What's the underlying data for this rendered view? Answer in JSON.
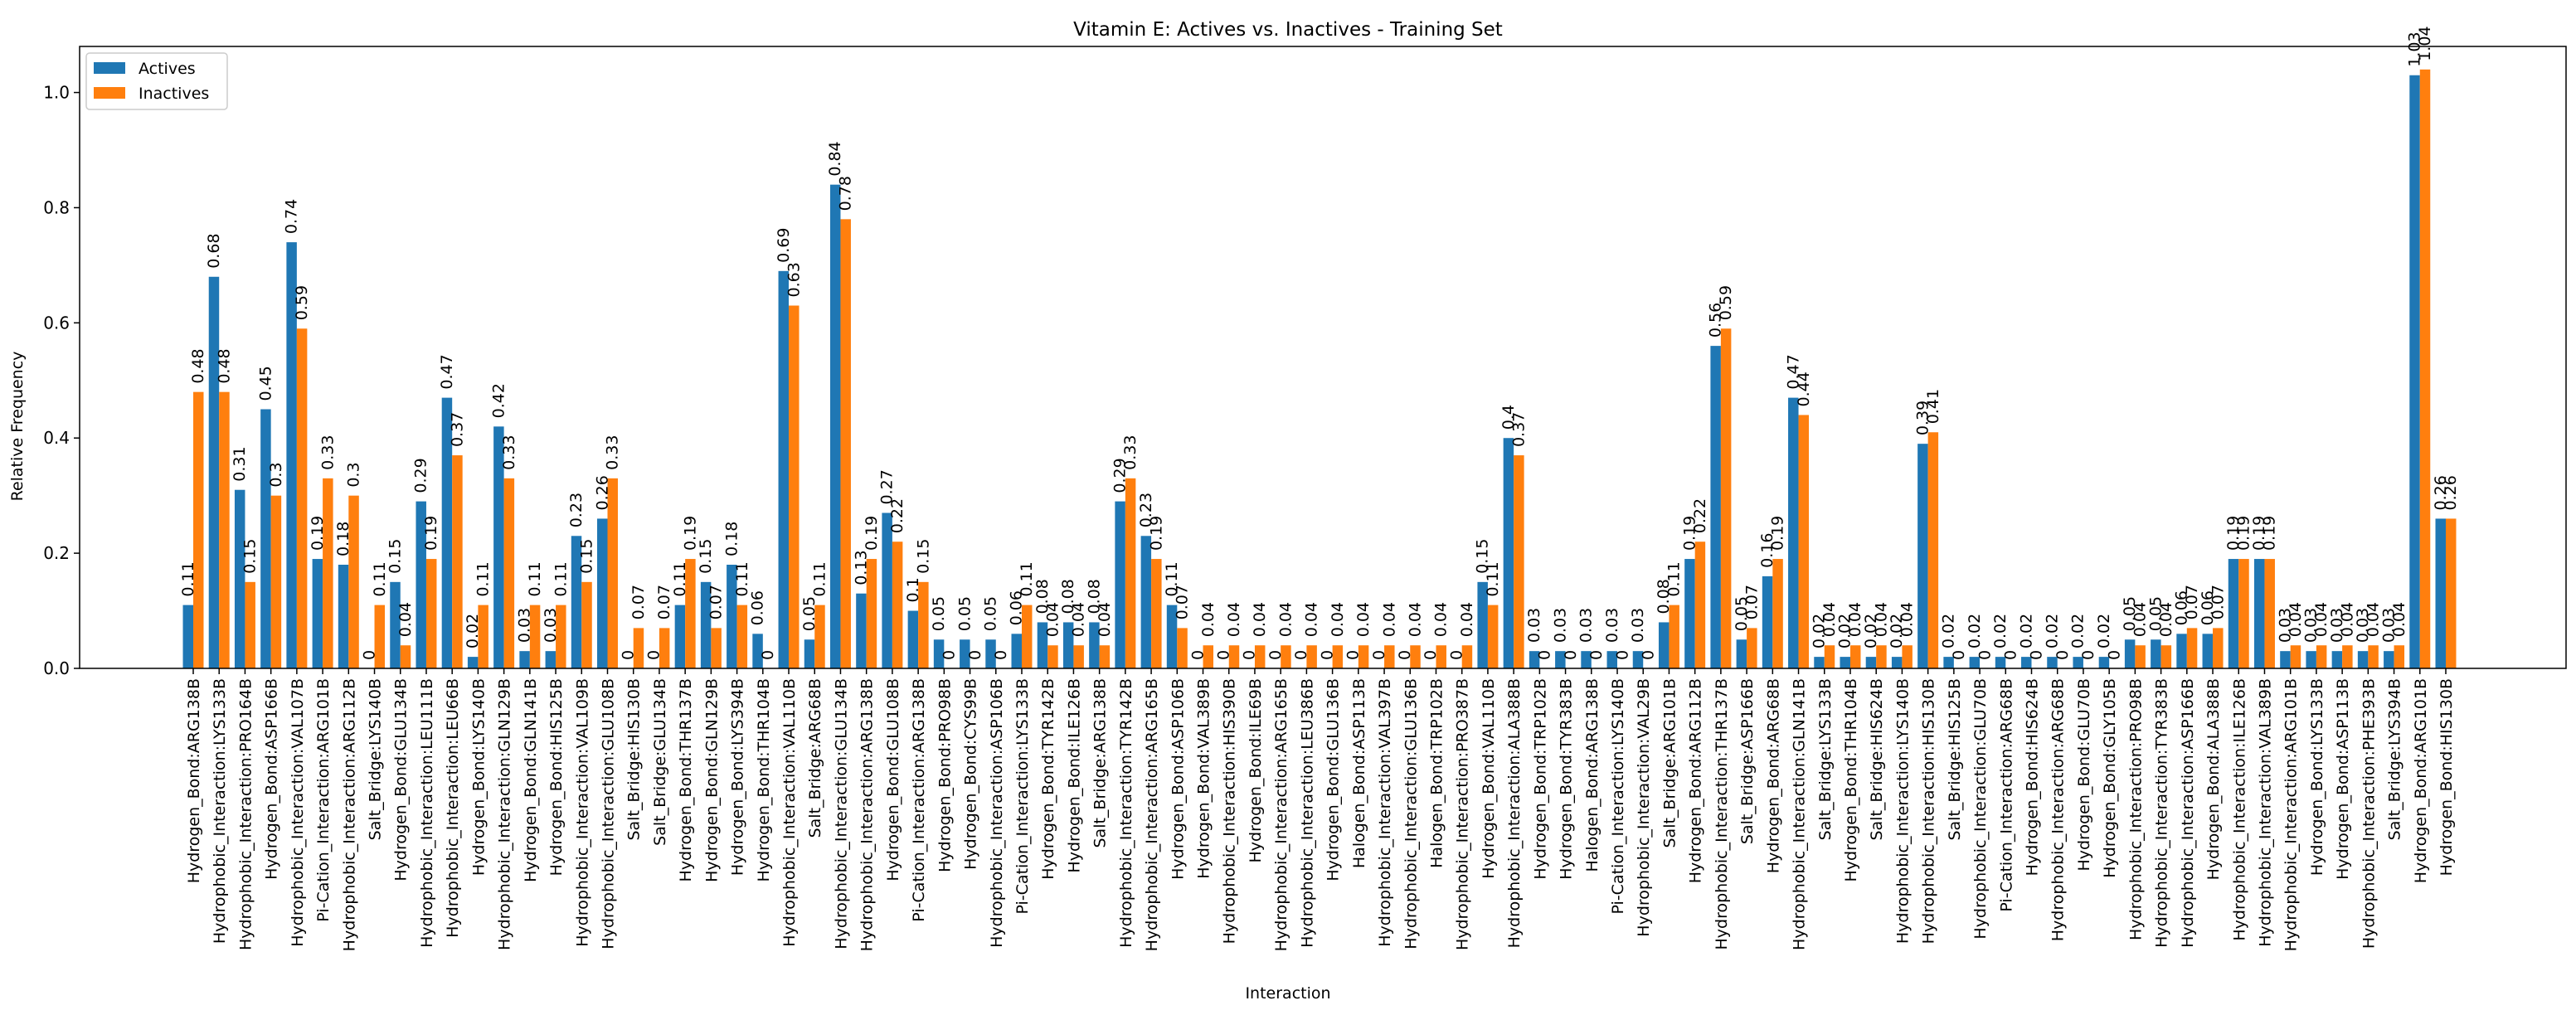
{
  "chart_data": {
    "type": "bar",
    "title": "Vitamin E: Actives vs. Inactives - Training Set",
    "xlabel": "Interaction",
    "ylabel": "Relative Frequency",
    "ylim": [
      0,
      1.08
    ],
    "yticks": [
      0.0,
      0.2,
      0.4,
      0.6,
      0.8,
      1.0
    ],
    "ytick_labels": [
      "0.0",
      "0.2",
      "0.4",
      "0.6",
      "0.8",
      "1.0"
    ],
    "legend_position": "top-left",
    "grid": false,
    "colors": {
      "Actives": "#1f77b4",
      "Inactives": "#ff7f0e"
    },
    "categories": [
      "Hydrogen_Bond:ARG138B",
      "Hydrophobic_Interaction:LYS133B",
      "Hydrophobic_Interaction:PRO164B",
      "Hydrogen_Bond:ASP166B",
      "Hydrophobic_Interaction:VAL107B",
      "Pi-Cation_Interaction:ARG101B",
      "Hydrophobic_Interaction:ARG112B",
      "Salt_Bridge:LYS140B",
      "Hydrogen_Bond:GLU134B",
      "Hydrophobic_Interaction:LEU111B",
      "Hydrophobic_Interaction:LEU66B",
      "Hydrogen_Bond:LYS140B",
      "Hydrophobic_Interaction:GLN129B",
      "Hydrogen_Bond:GLN141B",
      "Hydrogen_Bond:HIS125B",
      "Hydrophobic_Interaction:VAL109B",
      "Hydrophobic_Interaction:GLU108B",
      "Salt_Bridge:HIS130B",
      "Salt_Bridge:GLU134B",
      "Hydrogen_Bond:THR137B",
      "Hydrogen_Bond:GLN129B",
      "Hydrogen_Bond:LYS394B",
      "Hydrogen_Bond:THR104B",
      "Hydrophobic_Interaction:VAL110B",
      "Salt_Bridge:ARG68B",
      "Hydrophobic_Interaction:GLU134B",
      "Hydrophobic_Interaction:ARG138B",
      "Hydrogen_Bond:GLU108B",
      "Pi-Cation_Interaction:ARG138B",
      "Hydrogen_Bond:PRO98B",
      "Hydrogen_Bond:CYS99B",
      "Hydrophobic_Interaction:ASP106B",
      "Pi-Cation_Interaction:LYS133B",
      "Hydrogen_Bond:TYR142B",
      "Hydrogen_Bond:ILE126B",
      "Salt_Bridge:ARG138B",
      "Hydrophobic_Interaction:TYR142B",
      "Hydrophobic_Interaction:ARG165B",
      "Hydrogen_Bond:ASP106B",
      "Hydrogen_Bond:VAL389B",
      "Hydrophobic_Interaction:HIS390B",
      "Hydrogen_Bond:ILE69B",
      "Hydrophobic_Interaction:ARG165B",
      "Hydrophobic_Interaction:LEU386B",
      "Hydrogen_Bond:GLU136B",
      "Halogen_Bond:ASP113B",
      "Hydrophobic_Interaction:VAL397B",
      "Hydrophobic_Interaction:GLU136B",
      "Halogen_Bond:TRP102B",
      "Hydrophobic_Interaction:PRO387B",
      "Hydrogen_Bond:VAL110B",
      "Hydrophobic_Interaction:ALA388B",
      "Hydrogen_Bond:TRP102B",
      "Hydrogen_Bond:TYR383B",
      "Halogen_Bond:ARG138B",
      "Pi-Cation_Interaction:LYS140B",
      "Hydrophobic_Interaction:VAL29B",
      "Salt_Bridge:ARG101B",
      "Hydrogen_Bond:ARG112B",
      "Hydrophobic_Interaction:THR137B",
      "Salt_Bridge:ASP166B",
      "Hydrogen_Bond:ARG68B",
      "Hydrophobic_Interaction:GLN141B",
      "Salt_Bridge:LYS133B",
      "Hydrogen_Bond:THR104B",
      "Salt_Bridge:HIS624B",
      "Hydrophobic_Interaction:LYS140B",
      "Hydrophobic_Interaction:HIS130B",
      "Salt_Bridge:HIS125B",
      "Hydrophobic_Interaction:GLU70B",
      "Pi-Cation_Interaction:ARG68B",
      "Hydrogen_Bond:HIS624B",
      "Hydrophobic_Interaction:ARG68B",
      "Hydrogen_Bond:GLU70B",
      "Hydrogen_Bond:GLY105B",
      "Hydrophobic_Interaction:PRO98B",
      "Hydrophobic_Interaction:TYR383B",
      "Hydrophobic_Interaction:ASP166B",
      "Hydrogen_Bond:ALA388B",
      "Hydrophobic_Interaction:ILE126B",
      "Hydrophobic_Interaction:VAL389B",
      "Hydrophobic_Interaction:ARG101B",
      "Hydrogen_Bond:LYS133B",
      "Hydrogen_Bond:ASP113B",
      "Hydrophobic_Interaction:PHE393B",
      "Salt_Bridge:LYS394B",
      "Hydrogen_Bond:ARG101B",
      "Hydrogen_Bond:HIS130B"
    ],
    "series": [
      {
        "name": "Actives",
        "values": [
          0.11,
          0.68,
          0.31,
          0.45,
          0.74,
          0.19,
          0.18,
          0,
          0.15,
          0.29,
          0.47,
          0.02,
          0.42,
          0.03,
          0.03,
          0.23,
          0.26,
          0,
          0,
          0.11,
          0.15,
          0.18,
          0.06,
          0.69,
          0.05,
          0.84,
          0.13,
          0.27,
          0.1,
          0.05,
          0.05,
          0.05,
          0.06,
          0.08,
          0.08,
          0.08,
          0.29,
          0.23,
          0.11,
          0,
          0,
          0,
          0,
          0,
          0,
          0,
          0,
          0,
          0,
          0,
          0.15,
          0.4,
          0.03,
          0.03,
          0.03,
          0.03,
          0.03,
          0.08,
          0.19,
          0.56,
          0.05,
          0.16,
          0.47,
          0.02,
          0.02,
          0.02,
          0.02,
          0.39,
          0.02,
          0.02,
          0.02,
          0.02,
          0.02,
          0.02,
          0.02,
          0.05,
          0.05,
          0.06,
          0.06,
          0.19,
          0.19,
          0.03,
          0.03,
          0.03,
          0.03,
          0.03,
          1.03,
          0.26
        ],
        "labels": [
          "0.11",
          "0.68",
          "0.31",
          "0.45",
          "0.74",
          "0.19",
          "0.18",
          "0",
          "0.15",
          "0.29",
          "0.47",
          "0.02",
          "0.42",
          "0.03",
          "0.03",
          "0.23",
          "0.26",
          "0",
          "0",
          "0.11",
          "0.15",
          "0.18",
          "0.06",
          "0.69",
          "0.05",
          "0.84",
          "0.13",
          "0.27",
          "0.1",
          "0.05",
          "0.05",
          "0.05",
          "0.06",
          "0.08",
          "0.08",
          "0.08",
          "0.29",
          "0.23",
          "0.11",
          "0",
          "0",
          "0",
          "0",
          "0",
          "0",
          "0",
          "0",
          "0",
          "0",
          "0",
          "0.15",
          "0.4",
          "0.03",
          "0.03",
          "0.03",
          "0.03",
          "0.03",
          "0.08",
          "0.19",
          "0.56",
          "0.05",
          "0.16",
          "0.47",
          "0.02",
          "0.02",
          "0.02",
          "0.02",
          "0.39",
          "0.02",
          "0.02",
          "0.02",
          "0.02",
          "0.02",
          "0.02",
          "0.02",
          "0.05",
          "0.05",
          "0.06",
          "0.06",
          "0.19",
          "0.19",
          "0.03",
          "0.03",
          "0.03",
          "0.03",
          "0.03",
          "1.03",
          "0.26"
        ]
      },
      {
        "name": "Inactives",
        "values": [
          0.48,
          0.48,
          0.15,
          0.3,
          0.59,
          0.33,
          0.3,
          0.11,
          0.04,
          0.19,
          0.37,
          0.11,
          0.33,
          0.11,
          0.11,
          0.15,
          0.33,
          0.07,
          0.07,
          0.19,
          0.07,
          0.11,
          0,
          0.63,
          0.11,
          0.78,
          0.19,
          0.22,
          0.15,
          0,
          0,
          0,
          0.11,
          0.04,
          0.04,
          0.04,
          0.33,
          0.19,
          0.07,
          0.04,
          0.04,
          0.04,
          0.04,
          0.04,
          0.04,
          0.04,
          0.04,
          0.04,
          0.04,
          0.04,
          0.11,
          0.37,
          0,
          0,
          0,
          0,
          0,
          0.11,
          0.22,
          0.59,
          0.07,
          0.19,
          0.44,
          0.04,
          0.04,
          0.04,
          0.04,
          0.41,
          0,
          0,
          0,
          0,
          0,
          0,
          0,
          0.04,
          0.04,
          0.07,
          0.07,
          0.19,
          0.19,
          0.04,
          0.04,
          0.04,
          0.04,
          0.04,
          1.04,
          0.26
        ],
        "labels": [
          "0.48",
          "0.48",
          "0.15",
          "0.3",
          "0.59",
          "0.33",
          "0.3",
          "0.11",
          "0.04",
          "0.19",
          "0.37",
          "0.11",
          "0.33",
          "0.11",
          "0.11",
          "0.15",
          "0.33",
          "0.07",
          "0.07",
          "0.19",
          "0.07",
          "0.11",
          "0",
          "0.63",
          "0.11",
          "0.78",
          "0.19",
          "0.22",
          "0.15",
          "0",
          "0",
          "0",
          "0.11",
          "0.04",
          "0.04",
          "0.04",
          "0.33",
          "0.19",
          "0.07",
          "0.04",
          "0.04",
          "0.04",
          "0.04",
          "0.04",
          "0.04",
          "0.04",
          "0.04",
          "0.04",
          "0.04",
          "0.04",
          "0.11",
          "0.37",
          "0",
          "0",
          "0",
          "0",
          "0",
          "0.11",
          "0.22",
          "0.59",
          "0.07",
          "0.19",
          "0.44",
          "0.04",
          "0.04",
          "0.04",
          "0.04",
          "0.41",
          "0",
          "0",
          "0",
          "0",
          "0",
          "0",
          "0",
          "0.04",
          "0.04",
          "0.07",
          "0.07",
          "0.19",
          "0.19",
          "0.04",
          "0.04",
          "0.04",
          "0.04",
          "0.04",
          "1.04",
          "0.26"
        ]
      }
    ]
  }
}
